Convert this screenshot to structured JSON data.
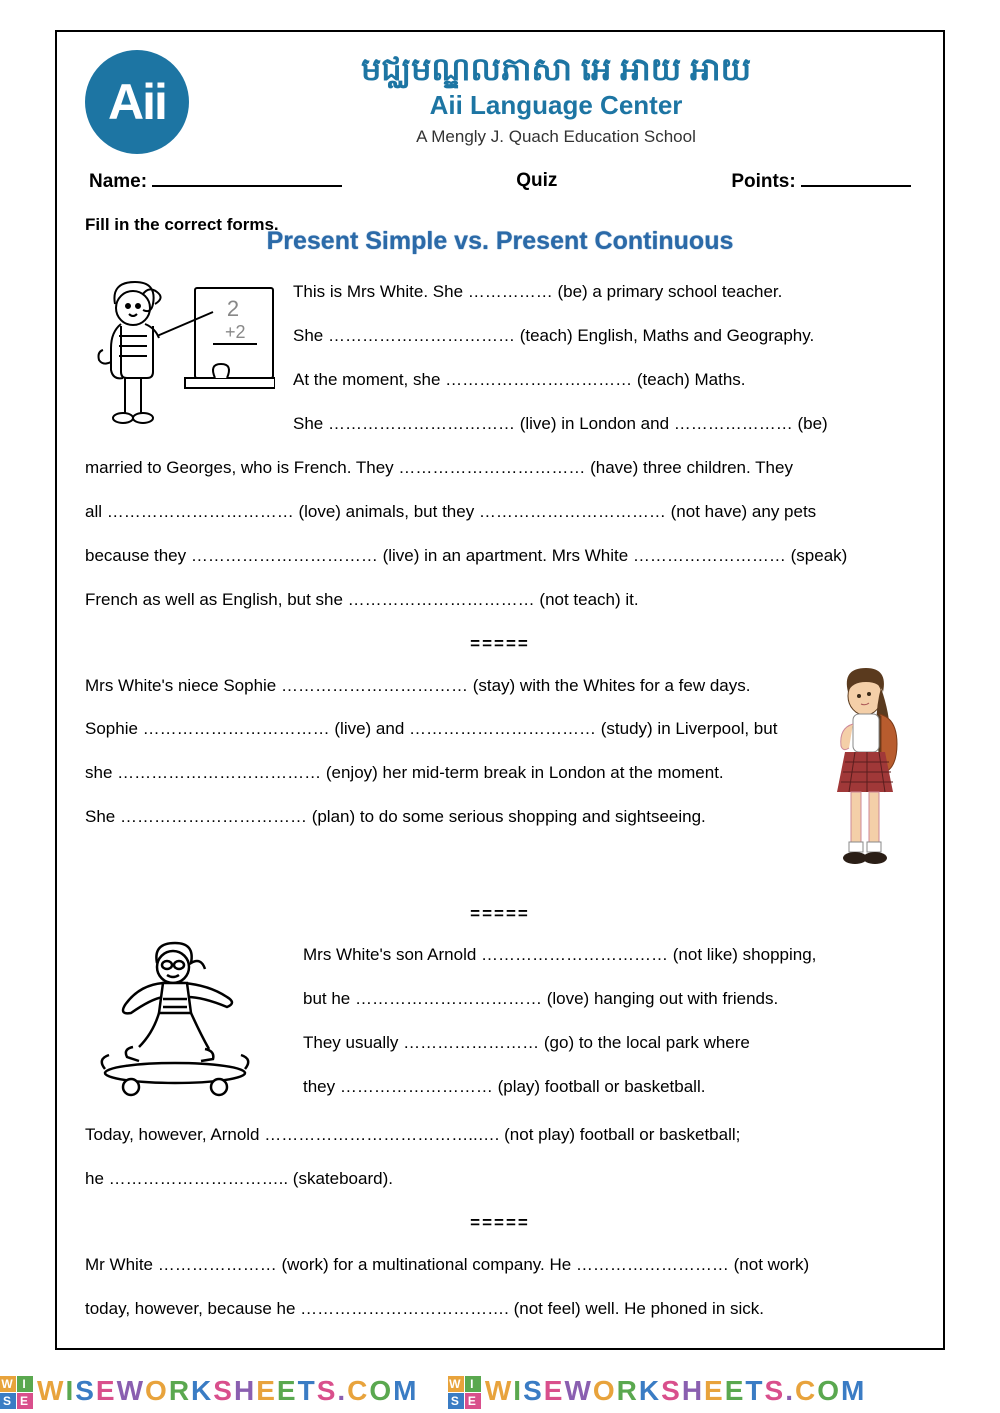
{
  "logo": {
    "text": "Aii"
  },
  "header": {
    "kh_title": "មជ្ឈមណ្ឌលភាសា អេ អាយ អាយ",
    "en_title": "Aii Language Center",
    "sub_title": "A Mengly J. Quach Education School"
  },
  "info": {
    "name_label": "Name:",
    "quiz_label": "Quiz",
    "points_label": "Points:"
  },
  "instruction": "Fill in the correct forms.",
  "ws_title": "Present Simple vs. Present Continuous",
  "sep": "=====",
  "body": {
    "p1a": "This is Mrs White. She …………… (be) a primary school teacher.",
    "p1b": "She …………………………… (teach) English, Maths and Geography.",
    "p1c": "At the moment, she …………………………… (teach) Maths.",
    "p1d": "She …………………………… (live) in London and ………………… (be)",
    "p1e": "married to Georges, who is French. They …………………………… (have) three children. They",
    "p1f": "all …………………………… (love) animals, but they …………………………… (not have) any pets",
    "p1g": "because they …………………………… (live) in an apartment. Mrs White ……………………… (speak)",
    "p1h": "French as well as English, but she …………………………… (not teach) it.",
    "p2a": "Mrs White's niece Sophie …………………………… (stay) with the Whites for a few days.",
    "p2b": "Sophie …………………………… (live) and …………………………… (study) in Liverpool,  but",
    "p2c": "she ……………………………… (enjoy) her mid-term break in London at the moment.",
    "p2d": "She …………………………… (plan) to do some serious shopping and sightseeing.",
    "p3a": "Mrs White's son Arnold …………………………… (not like) shopping,",
    "p3b": "but he …………………………… (love) hanging out with friends.",
    "p3c": "They usually …………………… (go) to the local park where",
    "p3d": "they ……………………… (play) football or basketball.",
    "p3e": "Today, however, Arnold ………………………………..…. (not play) football or basketball;",
    "p3f": "he ………………………….. (skateboard).",
    "p4a": "Mr White ………………… (work) for a multinational company. He ……………………… (not work)",
    "p4b": "today, however, because he ………………………………. (not feel) well. He phoned in sick."
  },
  "watermark": {
    "text": "WISEWORKSHEETS.COM",
    "colors": [
      "#e8a33c",
      "#5aa84f",
      "#3a7cc4",
      "#d94f8c",
      "#8a5fb0"
    ],
    "badge_bg": [
      "#e8a33c",
      "#5aa84f",
      "#3a7cc4",
      "#d94f8c"
    ],
    "badge_letters": [
      "W",
      "I",
      "S",
      "E"
    ]
  }
}
